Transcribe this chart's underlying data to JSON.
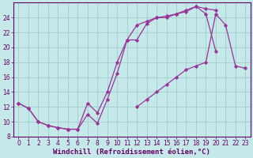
{
  "xlabel": "Windchill (Refroidissement éolien,°C)",
  "bg_color": "#c5e8e8",
  "grid_color": "#a8d0d0",
  "line_color": "#993399",
  "xlim": [
    -0.5,
    23.5
  ],
  "ylim": [
    8,
    26
  ],
  "xticks": [
    0,
    1,
    2,
    3,
    4,
    5,
    6,
    7,
    8,
    9,
    10,
    11,
    12,
    13,
    14,
    15,
    16,
    17,
    18,
    19,
    20,
    21,
    22,
    23
  ],
  "yticks": [
    8,
    10,
    12,
    14,
    16,
    18,
    20,
    22,
    24
  ],
  "curve_top_x": [
    0,
    1,
    2,
    3,
    4,
    5,
    6,
    7,
    8,
    9,
    10,
    11,
    12,
    13,
    14,
    15,
    16,
    17,
    18,
    19,
    20
  ],
  "curve_top_y": [
    12.5,
    11.8,
    10.0,
    9.5,
    9.2,
    9.0,
    9.0,
    12.5,
    11.2,
    14.0,
    18.0,
    21.0,
    23.0,
    23.5,
    24.0,
    24.0,
    24.5,
    25.0,
    25.5,
    25.2,
    25.0
  ],
  "curve_bot_x": [
    0,
    1,
    2,
    3,
    4,
    5,
    6,
    7,
    8,
    9,
    10,
    11,
    12,
    13,
    14,
    15,
    16,
    17,
    18,
    19,
    20,
    21,
    22,
    23
  ],
  "curve_bot_y": [
    12.5,
    11.8,
    10.0,
    9.5,
    9.2,
    9.0,
    9.0,
    11.0,
    9.8,
    13.0,
    16.5,
    21.0,
    21.0,
    23.2,
    24.0,
    24.2,
    24.5,
    24.8,
    25.5,
    24.5,
    19.5,
    null,
    null,
    null
  ],
  "curve_diag_x": [
    12,
    13,
    14,
    15,
    16,
    17,
    18,
    19,
    20,
    21,
    22,
    23
  ],
  "curve_diag_y": [
    12.0,
    13.0,
    14.0,
    15.0,
    16.0,
    17.0,
    17.5,
    18.0,
    24.5,
    23.0,
    17.5,
    17.2
  ],
  "font_color": "#660066",
  "tick_fontsize": 5.5,
  "label_fontsize": 6.5
}
